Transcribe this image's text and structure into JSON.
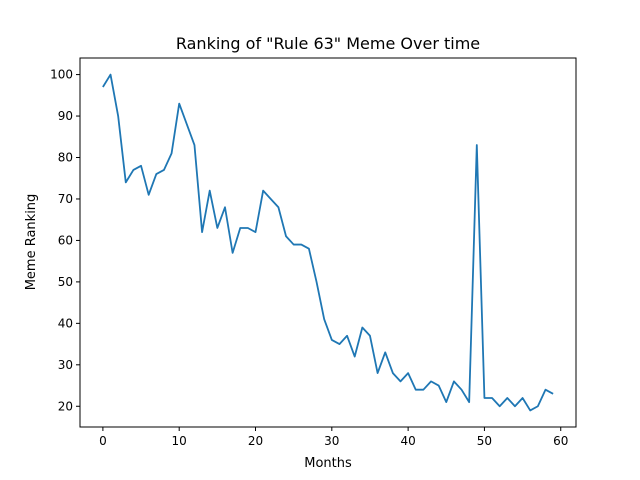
{
  "chart_data": {
    "type": "line",
    "title": "Ranking of \"Rule 63\" Meme Over time",
    "xlabel": "Months",
    "ylabel": "Meme Ranking",
    "xlim": [
      -3,
      62
    ],
    "ylim": [
      15,
      104
    ],
    "xticks": [
      0,
      10,
      20,
      30,
      40,
      50,
      60
    ],
    "yticks": [
      20,
      30,
      40,
      50,
      60,
      70,
      80,
      90,
      100
    ],
    "grid": false,
    "line_color": "#1f77b4",
    "series": [
      {
        "x": [
          0,
          1,
          2,
          3,
          4,
          5,
          6,
          7,
          8,
          9,
          10,
          11,
          12,
          13,
          14,
          15,
          16,
          17,
          18,
          19,
          20,
          21,
          22,
          23,
          24,
          25,
          26,
          27,
          28,
          29,
          30,
          31,
          32,
          33,
          34,
          35,
          36,
          37,
          38,
          39,
          40,
          41,
          42,
          43,
          44,
          45,
          46,
          47,
          48,
          49,
          50,
          51,
          52,
          53,
          54,
          55,
          56,
          57,
          58,
          59
        ],
        "values": [
          97,
          100,
          90,
          74,
          77,
          78,
          71,
          76,
          77,
          81,
          93,
          88,
          83,
          62,
          72,
          63,
          68,
          57,
          63,
          63,
          62,
          72,
          70,
          68,
          61,
          59,
          59,
          58,
          50,
          41,
          36,
          35,
          37,
          32,
          39,
          37,
          28,
          33,
          28,
          26,
          28,
          24,
          24,
          26,
          25,
          21,
          26,
          24,
          21,
          83,
          22,
          22,
          20,
          22,
          20,
          22,
          19,
          20,
          24,
          23
        ]
      }
    ]
  }
}
